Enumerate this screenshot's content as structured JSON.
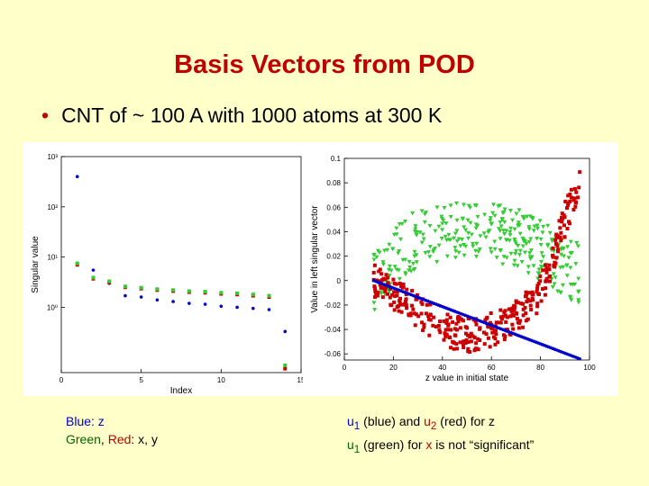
{
  "slide": {
    "title": "Basis Vectors from POD",
    "bullet": "CNT of ~ 100 A with 1000 atoms at 300 K"
  },
  "captions": {
    "left_line1": "Blue: z",
    "left_line2_green": "Green",
    "left_line2_sep": ", ",
    "left_line2_red": "Red",
    "left_line2_rest": ": x, y",
    "right_line1_a": "u",
    "right_line1_sub1": "1",
    "right_line1_b": " (blue) and ",
    "right_line1_c": "u",
    "right_line1_sub2": "2",
    "right_line1_d": " (red) for z",
    "right_line2_a": "u",
    "right_line2_sub": "1",
    "right_line2_b": " (green) for ",
    "right_line2_x": "x",
    "right_line2_c": " is not “significant”"
  },
  "chart_data": [
    {
      "type": "scatter",
      "xlabel": "Index",
      "ylabel": "Singular value",
      "xlim": [
        0,
        15
      ],
      "ylim_log10": [
        -1.3,
        3
      ],
      "y_scale": "log",
      "x_ticks": [
        "0",
        "5",
        "10",
        "15"
      ],
      "y_ticks": [
        "10⁰",
        "10¹",
        "10²",
        "10³"
      ],
      "y_tick_values": [
        1,
        10,
        100,
        1000
      ],
      "series": [
        {
          "color": "#0000cc",
          "marker": "dot",
          "x": [
            1,
            2,
            3,
            4,
            5,
            6,
            7,
            8,
            9,
            10,
            11,
            12,
            13,
            14
          ],
          "y": [
            400,
            5.5,
            3.0,
            1.7,
            1.6,
            1.4,
            1.3,
            1.2,
            1.15,
            1.05,
            1.0,
            0.95,
            0.9,
            0.33
          ]
        },
        {
          "color": "#cc0000",
          "marker": "square",
          "x": [
            1,
            2,
            3,
            4,
            5,
            6,
            7,
            8,
            9,
            10,
            11,
            12,
            13,
            14
          ],
          "y": [
            7,
            3.7,
            3.1,
            2.5,
            2.35,
            2.2,
            2.1,
            2.0,
            1.95,
            1.85,
            1.8,
            1.7,
            1.6,
            0.06
          ]
        },
        {
          "color": "#33cc33",
          "marker": "square",
          "x": [
            1,
            2,
            3,
            4,
            5,
            6,
            7,
            8,
            9,
            10,
            11,
            12,
            13,
            14
          ],
          "y": [
            7.5,
            3.9,
            3.3,
            2.6,
            2.45,
            2.3,
            2.2,
            2.1,
            2.05,
            1.95,
            1.9,
            1.8,
            1.7,
            0.07
          ]
        }
      ]
    },
    {
      "type": "scatter",
      "xlabel": "z value in initial state",
      "ylabel": "Value in left singular vector",
      "xlim": [
        0,
        100
      ],
      "ylim": [
        -0.065,
        0.1
      ],
      "x_ticks": [
        0,
        20,
        40,
        60,
        80,
        100
      ],
      "y_ticks": [
        -0.06,
        -0.04,
        -0.02,
        0,
        0.02,
        0.04,
        0.06,
        0.08,
        0.1
      ],
      "y_tick_labels": [
        "-0.06",
        "-0.04",
        "-0.02",
        "0",
        "0.02",
        "0.04",
        "0.06",
        "0.08",
        "0.1"
      ],
      "series": [
        {
          "color": "#0000cc",
          "marker": "dot",
          "x_range": [
            12,
            96
          ],
          "y_start": 0.0,
          "y_end": -0.064
        },
        {
          "color": "#cc0000",
          "marker": "square",
          "x_range": [
            12,
            96
          ],
          "shape": "u-curve",
          "points": [
            [
              12,
              0.0
            ],
            [
              20,
              -0.01
            ],
            [
              30,
              -0.025
            ],
            [
              40,
              -0.04
            ],
            [
              50,
              -0.045
            ],
            [
              60,
              -0.04
            ],
            [
              70,
              -0.03
            ],
            [
              80,
              -0.01
            ],
            [
              85,
              0.02
            ],
            [
              90,
              0.05
            ],
            [
              95,
              0.075
            ]
          ]
        },
        {
          "color": "#33cc33",
          "marker": "triangle",
          "x_range": [
            12,
            96
          ],
          "shape": "hump",
          "points": [
            [
              12,
              0.0
            ],
            [
              20,
              0.02
            ],
            [
              30,
              0.035
            ],
            [
              40,
              0.04
            ],
            [
              50,
              0.045
            ],
            [
              60,
              0.04
            ],
            [
              70,
              0.035
            ],
            [
              80,
              0.025
            ],
            [
              90,
              0.01
            ],
            [
              96,
              0.005
            ]
          ]
        }
      ]
    }
  ]
}
